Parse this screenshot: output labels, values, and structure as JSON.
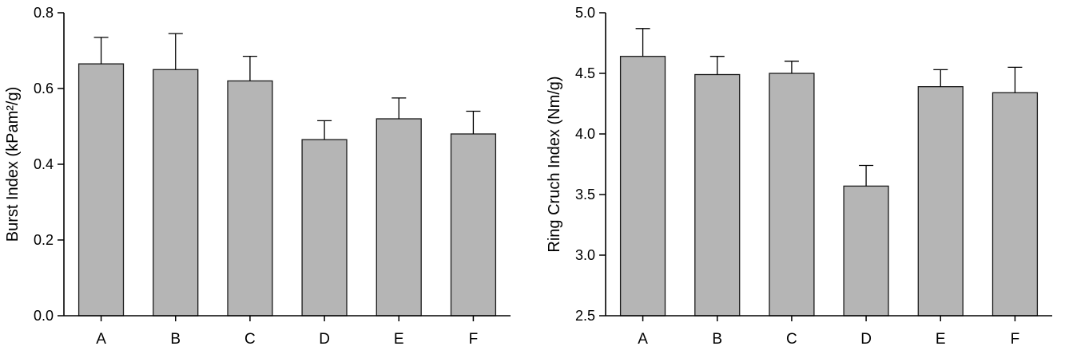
{
  "figure": {
    "background": "#ffffff",
    "bar_fill": "#b5b5b5",
    "bar_stroke": "#1a1a1a",
    "axis_color": "#000000"
  },
  "chart_data": [
    {
      "type": "bar",
      "name": "burst-index",
      "title": "",
      "xlabel": "",
      "ylabel": "Burst Index (kPam²/g)",
      "categories": [
        "A",
        "B",
        "C",
        "D",
        "E",
        "F"
      ],
      "values": [
        0.665,
        0.65,
        0.62,
        0.465,
        0.52,
        0.48
      ],
      "errors_upper": [
        0.07,
        0.095,
        0.065,
        0.05,
        0.055,
        0.06
      ],
      "ylim": [
        0.0,
        0.8
      ],
      "yticks": [
        0.0,
        0.2,
        0.4,
        0.6,
        0.8
      ],
      "ytick_labels": [
        "0.0",
        "0.2",
        "0.4",
        "0.6",
        "0.8"
      ],
      "grid": false,
      "legend": "none",
      "error_bars": "upper-only"
    },
    {
      "type": "bar",
      "name": "ring-cruch-index",
      "title": "",
      "xlabel": "",
      "ylabel": "Ring Cruch Index (Nm/g)",
      "categories": [
        "A",
        "B",
        "C",
        "D",
        "E",
        "F"
      ],
      "values": [
        4.64,
        4.49,
        4.5,
        3.57,
        4.39,
        4.34
      ],
      "errors_upper": [
        0.23,
        0.15,
        0.1,
        0.17,
        0.14,
        0.21
      ],
      "ylim": [
        2.5,
        5.0
      ],
      "yticks": [
        2.5,
        3.0,
        3.5,
        4.0,
        4.5,
        5.0
      ],
      "ytick_labels": [
        "2.5",
        "3.0",
        "3.5",
        "4.0",
        "4.5",
        "5.0"
      ],
      "grid": false,
      "legend": "none",
      "error_bars": "upper-only"
    }
  ]
}
